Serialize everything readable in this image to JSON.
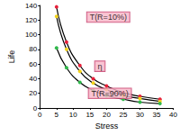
{
  "chart_data": {
    "type": "line",
    "x_label": "Stress",
    "y_label": "Life",
    "xlim": [
      0,
      40
    ],
    "xticks": [
      0,
      5,
      10,
      15,
      20,
      25,
      30,
      35,
      40
    ],
    "ylim": [
      0,
      140
    ],
    "yticks": [
      0,
      20,
      40,
      60,
      80,
      100,
      120,
      140
    ],
    "grid": false,
    "marker": "circle",
    "line_style": "solid",
    "series": [
      {
        "name": "T(R=10%)",
        "color": "#e8203a",
        "x": [
          5,
          8,
          12,
          16,
          20,
          25,
          30,
          36
        ],
        "values": [
          138,
          90,
          58,
          40,
          30,
          21,
          16,
          12
        ]
      },
      {
        "name": "η",
        "color": "#f2d21b",
        "x": [
          5,
          8,
          12,
          16,
          20,
          25,
          30,
          36
        ],
        "values": [
          125,
          80,
          50,
          34,
          25,
          17,
          13,
          9
        ]
      },
      {
        "name": "T(R=90%)",
        "color": "#2eb84a",
        "x": [
          5,
          8,
          12,
          16,
          20,
          25,
          30,
          36
        ],
        "values": [
          82,
          55,
          35,
          24,
          17,
          12,
          8,
          6
        ]
      }
    ],
    "annotations": [
      {
        "text": "T(R=10%)",
        "x": 20.5,
        "y": 124
      },
      {
        "text": "η",
        "x": 18,
        "y": 57
      },
      {
        "text": "T(R=90%)",
        "x": 21,
        "y": 20
      }
    ]
  }
}
